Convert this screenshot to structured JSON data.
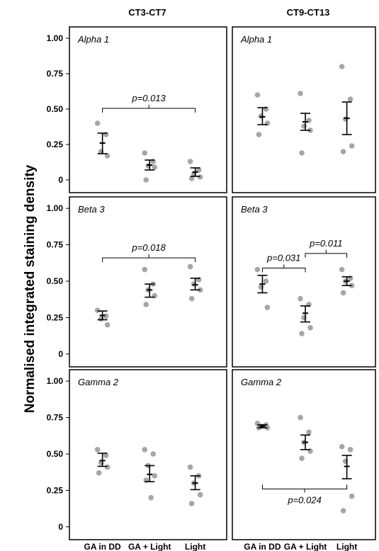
{
  "chart_data": {
    "type": "scatter",
    "ylabel": "Normalised integrated staining density",
    "column_titles": [
      "CT3-CT7",
      "CT9-CT13"
    ],
    "categories": [
      "GA in DD",
      "GA + Light",
      "Light"
    ],
    "yticks": [
      0,
      0.25,
      0.5,
      0.75,
      1.0
    ],
    "ytick_labels": [
      "0",
      "0.25",
      "0.50",
      "0.75",
      "1.00"
    ],
    "ylim": [
      -0.03,
      1.03
    ],
    "panels": [
      {
        "id": "alpha1-ct3",
        "title": "Alpha 1",
        "groups": [
          {
            "points": [
              0.4,
              0.32,
              0.2,
              0.17
            ],
            "mean": 0.26,
            "lower": 0.185,
            "upper": 0.33
          },
          {
            "points": [
              0.19,
              0.13,
              0.1,
              0.09,
              0.0
            ],
            "mean": 0.105,
            "lower": 0.07,
            "upper": 0.14
          },
          {
            "points": [
              0.13,
              0.07,
              0.04,
              0.02,
              0.01
            ],
            "mean": 0.055,
            "lower": 0.025,
            "upper": 0.085
          }
        ],
        "brackets": [
          {
            "from": 0,
            "to": 2,
            "y": 0.505,
            "label": "p=0.013"
          }
        ]
      },
      {
        "id": "alpha1-ct9",
        "title": "Alpha 1",
        "groups": [
          {
            "points": [
              0.6,
              0.5,
              0.45,
              0.4,
              0.32
            ],
            "mean": 0.445,
            "lower": 0.39,
            "upper": 0.51
          },
          {
            "points": [
              0.61,
              0.42,
              0.38,
              0.35,
              0.19
            ],
            "mean": 0.41,
            "lower": 0.35,
            "upper": 0.47
          },
          {
            "points": [
              0.8,
              0.57,
              0.43,
              0.24,
              0.2
            ],
            "mean": 0.435,
            "lower": 0.32,
            "upper": 0.55
          }
        ],
        "brackets": []
      },
      {
        "id": "beta3-ct3",
        "title": "Beta 3",
        "groups": [
          {
            "points": [
              0.3,
              0.26,
              0.24,
              0.2
            ],
            "mean": 0.265,
            "lower": 0.235,
            "upper": 0.295
          },
          {
            "points": [
              0.58,
              0.48,
              0.44,
              0.4,
              0.34
            ],
            "mean": 0.44,
            "lower": 0.39,
            "upper": 0.48
          },
          {
            "points": [
              0.6,
              0.51,
              0.48,
              0.44,
              0.38
            ],
            "mean": 0.475,
            "lower": 0.44,
            "upper": 0.52
          }
        ],
        "brackets": [
          {
            "from": 0,
            "to": 2,
            "y": 0.66,
            "label": "p=0.018"
          }
        ]
      },
      {
        "id": "beta3-ct9",
        "title": "Beta 3",
        "groups": [
          {
            "points": [
              0.58,
              0.5,
              0.46,
              0.32
            ],
            "mean": 0.48,
            "lower": 0.42,
            "upper": 0.54
          },
          {
            "points": [
              0.38,
              0.34,
              0.25,
              0.18,
              0.14
            ],
            "mean": 0.28,
            "lower": 0.22,
            "upper": 0.33
          },
          {
            "points": [
              0.58,
              0.52,
              0.5,
              0.47,
              0.42
            ],
            "mean": 0.5,
            "lower": 0.47,
            "upper": 0.53
          }
        ],
        "brackets": [
          {
            "from": 0,
            "to": 1,
            "y": 0.59,
            "label": "p=0.031"
          },
          {
            "from": 1,
            "to": 2,
            "y": 0.69,
            "label": "p=0.011"
          }
        ]
      },
      {
        "id": "gamma2-ct3",
        "title": "Gamma 2",
        "groups": [
          {
            "points": [
              0.53,
              0.49,
              0.44,
              0.41,
              0.37
            ],
            "mean": 0.455,
            "lower": 0.415,
            "upper": 0.505
          },
          {
            "points": [
              0.53,
              0.5,
              0.42,
              0.35,
              0.32,
              0.2
            ],
            "mean": 0.36,
            "lower": 0.31,
            "upper": 0.42
          },
          {
            "points": [
              0.41,
              0.35,
              0.3,
              0.22,
              0.16
            ],
            "mean": 0.3,
            "lower": 0.255,
            "upper": 0.35
          }
        ],
        "brackets": []
      },
      {
        "id": "gamma2-ct9",
        "title": "Gamma 2",
        "groups": [
          {
            "points": [
              0.71,
              0.7,
              0.69,
              0.68,
              0.68
            ],
            "mean": 0.69,
            "lower": 0.68,
            "upper": 0.7
          },
          {
            "points": [
              0.75,
              0.65,
              0.58,
              0.52,
              0.47
            ],
            "mean": 0.58,
            "lower": 0.53,
            "upper": 0.63
          },
          {
            "points": [
              0.55,
              0.53,
              0.45,
              0.21,
              0.11
            ],
            "mean": 0.415,
            "lower": 0.33,
            "upper": 0.49
          }
        ],
        "brackets": [
          {
            "from": 0,
            "to": 2,
            "y": 0.26,
            "label": "p=0.024",
            "direction": "up"
          }
        ]
      }
    ],
    "point_color": "#a6a6a6",
    "mean_color": "#000000"
  }
}
